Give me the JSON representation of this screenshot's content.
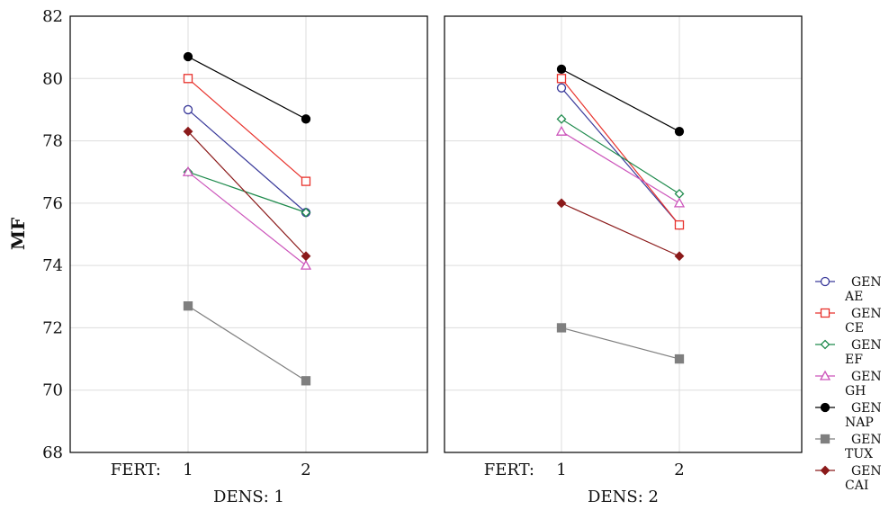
{
  "chart_data": {
    "type": "line",
    "ylabel": "MF",
    "ylim": [
      68,
      82
    ],
    "yticks": [
      68,
      70,
      72,
      74,
      76,
      78,
      80,
      82
    ],
    "grid": true,
    "legend_placement": "right",
    "x_axis_name": "FERT:",
    "categories": [
      "1",
      "2"
    ],
    "panels": [
      {
        "label": "DENS: 1",
        "series": [
          {
            "name": "GEN AE",
            "values": [
              79.0,
              75.7
            ]
          },
          {
            "name": "GEN CE",
            "values": [
              80.0,
              76.7
            ]
          },
          {
            "name": "GEN EF",
            "values": [
              77.0,
              75.7
            ]
          },
          {
            "name": "GEN GH",
            "values": [
              77.0,
              74.0
            ]
          },
          {
            "name": "GEN NAP",
            "values": [
              80.7,
              78.7
            ]
          },
          {
            "name": "GEN TUX",
            "values": [
              72.7,
              70.3
            ]
          },
          {
            "name": "GEN CAI",
            "values": [
              78.3,
              74.3
            ]
          }
        ]
      },
      {
        "label": "DENS: 2",
        "series": [
          {
            "name": "GEN AE",
            "values": [
              79.7,
              75.3
            ]
          },
          {
            "name": "GEN CE",
            "values": [
              80.0,
              75.3
            ]
          },
          {
            "name": "GEN EF",
            "values": [
              78.7,
              76.3
            ]
          },
          {
            "name": "GEN GH",
            "values": [
              78.3,
              76.0
            ]
          },
          {
            "name": "GEN NAP",
            "values": [
              80.3,
              78.3
            ]
          },
          {
            "name": "GEN TUX",
            "values": [
              72.0,
              71.0
            ]
          },
          {
            "name": "GEN CAI",
            "values": [
              76.0,
              74.3
            ]
          }
        ]
      }
    ],
    "legend": [
      {
        "line1": "GEN",
        "line2": "AE",
        "color": "#3a3a9a",
        "marker": "circle-open"
      },
      {
        "line1": "GEN",
        "line2": "CE",
        "color": "#e8322c",
        "marker": "square-open"
      },
      {
        "line1": "GEN",
        "line2": "EF",
        "color": "#1e8a4c",
        "marker": "diamond-open"
      },
      {
        "line1": "GEN",
        "line2": "GH",
        "color": "#cc55bb",
        "marker": "triangle-open"
      },
      {
        "line1": "GEN",
        "line2": "NAP",
        "color": "#000000",
        "marker": "circle-filled"
      },
      {
        "line1": "GEN",
        "line2": "TUX",
        "color": "#7f7f7f",
        "marker": "square-filled"
      },
      {
        "line1": "GEN",
        "line2": "CAI",
        "color": "#8b1a1a",
        "marker": "diamond-filled"
      }
    ]
  }
}
